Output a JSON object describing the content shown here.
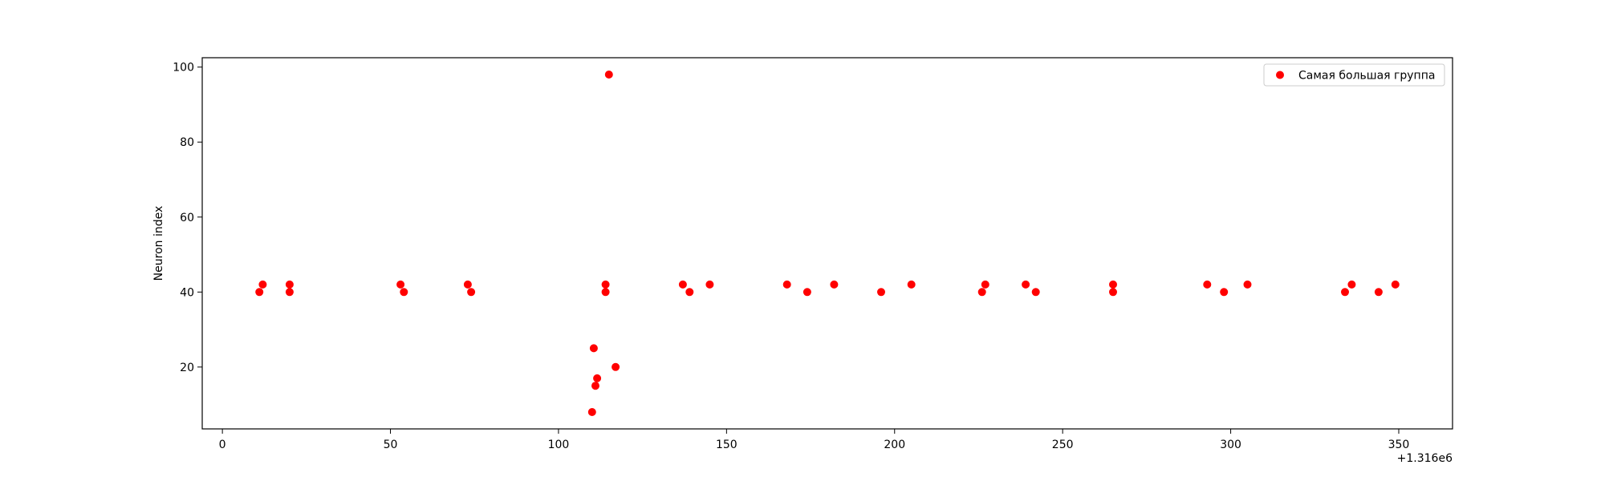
{
  "chart_data": {
    "type": "scatter",
    "title": "",
    "xlabel": "",
    "ylabel": "Neuron index",
    "x_offset_label": "+1.316e6",
    "xlim": [
      -6,
      366
    ],
    "ylim": [
      3.5,
      102.5
    ],
    "xticks": [
      0,
      50,
      100,
      150,
      200,
      250,
      300,
      350
    ],
    "yticks": [
      20,
      40,
      60,
      80,
      100
    ],
    "grid": false,
    "legend_position": "top-right",
    "series": [
      {
        "name": "Самая большая группа",
        "color": "#ff0000",
        "points": [
          [
            11,
            40
          ],
          [
            12,
            42
          ],
          [
            20,
            42
          ],
          [
            20,
            40
          ],
          [
            53,
            42
          ],
          [
            54,
            40
          ],
          [
            73,
            42
          ],
          [
            74,
            40
          ],
          [
            110,
            8
          ],
          [
            110.5,
            25
          ],
          [
            111,
            15
          ],
          [
            111.5,
            17
          ],
          [
            114,
            42
          ],
          [
            114,
            40
          ],
          [
            115,
            98
          ],
          [
            117,
            20
          ],
          [
            137,
            42
          ],
          [
            139,
            40
          ],
          [
            145,
            42
          ],
          [
            168,
            42
          ],
          [
            174,
            40
          ],
          [
            182,
            42
          ],
          [
            196,
            40
          ],
          [
            205,
            42
          ],
          [
            226,
            40
          ],
          [
            227,
            42
          ],
          [
            239,
            42
          ],
          [
            242,
            40
          ],
          [
            265,
            42
          ],
          [
            265,
            40
          ],
          [
            293,
            42
          ],
          [
            298,
            40
          ],
          [
            305,
            42
          ],
          [
            334,
            40
          ],
          [
            336,
            42
          ],
          [
            344,
            40
          ],
          [
            349,
            42
          ]
        ]
      }
    ]
  }
}
